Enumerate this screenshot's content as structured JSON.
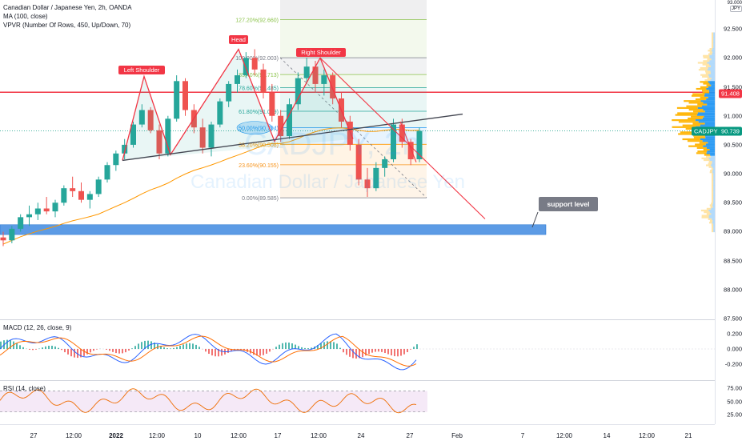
{
  "legend": {
    "symbol_line": "Canadian Dollar / Japanese Yen, 2h, OANDA",
    "ma_line": "MA (100, close)",
    "vpvr_line": "VPVR (Number Of Rows, 450, Up/Down, 70)",
    "macd_line": "MACD (12, 26, close, 9)",
    "rsi_line": "RSI (14, close)"
  },
  "watermark": {
    "symbol": "CADJPY, 2h",
    "name": "Canadian Dollar / Japanese Yen"
  },
  "colors": {
    "up": "#26a69a",
    "down": "#ef5350",
    "ma": "#ff9800",
    "pattern": "#f23645",
    "neckline": "#434651",
    "support": "#2196f3",
    "resistance": "#f23645",
    "price": "#089981",
    "vp_up": "#2196f3",
    "vp_down": "#ffb300"
  },
  "price_axis": {
    "currency": "JPY",
    "top_label": "93.000",
    "ticks": [
      "92.500",
      "92.000",
      "91.500",
      "91.000",
      "90.500",
      "90.000",
      "89.500",
      "89.000",
      "88.500",
      "88.000",
      "87.500"
    ]
  },
  "macd_axis": {
    "ticks": [
      "0.200",
      "0.000",
      "-0.200"
    ]
  },
  "rsi_axis": {
    "ticks": [
      "75.00",
      "50.00",
      "25.00"
    ]
  },
  "time_axis": [
    {
      "label": "27",
      "bold": false
    },
    {
      "label": "12:00",
      "bold": false
    },
    {
      "label": "2022",
      "bold": true
    },
    {
      "label": "12:00",
      "bold": false
    },
    {
      "label": "10",
      "bold": false
    },
    {
      "label": "12:00",
      "bold": false
    },
    {
      "label": "17",
      "bold": false
    },
    {
      "label": "12:00",
      "bold": false
    },
    {
      "label": "24",
      "bold": false
    },
    {
      "label": "27",
      "bold": false
    },
    {
      "label": "Feb",
      "bold": false
    },
    {
      "label": "7",
      "bold": false
    },
    {
      "label": "12:00",
      "bold": false
    },
    {
      "label": "14",
      "bold": false
    },
    {
      "label": "12:00",
      "bold": false
    },
    {
      "label": "21",
      "bold": false
    }
  ],
  "price_tags": {
    "resistance_value": "91.408",
    "ticker": "CADJPY",
    "last_value": "90.739"
  },
  "fib_levels": [
    {
      "label": "127.20%(92.660)",
      "price": 92.66,
      "color": "#8bc34a"
    },
    {
      "label": "100.00%(92.003)",
      "price": 92.003,
      "color": "#787b86"
    },
    {
      "label": "85.40%(91.713)",
      "price": 91.713,
      "color": "#8bc34a"
    },
    {
      "label": "78.60%(91.485)",
      "price": 91.485,
      "color": "#26a69a"
    },
    {
      "label": "61.80%(91.079)",
      "price": 91.079,
      "color": "#26a69a"
    },
    {
      "label": "50.00%(90.794)",
      "price": 90.794,
      "color": "#2196f3"
    },
    {
      "label": "38.20%(90.508)",
      "price": 90.508,
      "color": "#ff9800"
    },
    {
      "label": "23.60%(90.155)",
      "price": 90.155,
      "color": "#f7931a"
    },
    {
      "label": "0.00%(89.585)",
      "price": 89.585,
      "color": "#787b86"
    }
  ],
  "annotations": {
    "left_shoulder": "Left Shoulder",
    "head": "Head",
    "right_shoulder": "Right Shoulder",
    "support": "support level"
  },
  "chart_data": {
    "type": "candlestick",
    "symbol": "CADJPY",
    "timeframe": "2h",
    "price_range": [
      87.5,
      93.0
    ],
    "ohlc_approx": [
      {
        "o": 88.9,
        "h": 89.0,
        "l": 88.75,
        "c": 88.85
      },
      {
        "o": 88.85,
        "h": 89.1,
        "l": 88.8,
        "c": 89.05
      },
      {
        "o": 89.05,
        "h": 89.3,
        "l": 89.0,
        "c": 89.25
      },
      {
        "o": 89.25,
        "h": 89.45,
        "l": 89.1,
        "c": 89.3
      },
      {
        "o": 89.3,
        "h": 89.5,
        "l": 89.2,
        "c": 89.4
      },
      {
        "o": 89.4,
        "h": 89.6,
        "l": 89.3,
        "c": 89.35
      },
      {
        "o": 89.35,
        "h": 89.55,
        "l": 89.25,
        "c": 89.5
      },
      {
        "o": 89.5,
        "h": 89.8,
        "l": 89.45,
        "c": 89.75
      },
      {
        "o": 89.75,
        "h": 89.95,
        "l": 89.6,
        "c": 89.7
      },
      {
        "o": 89.7,
        "h": 89.85,
        "l": 89.5,
        "c": 89.55
      },
      {
        "o": 89.55,
        "h": 89.7,
        "l": 89.4,
        "c": 89.65
      },
      {
        "o": 89.65,
        "h": 89.95,
        "l": 89.6,
        "c": 89.9
      },
      {
        "o": 89.9,
        "h": 90.2,
        "l": 89.85,
        "c": 90.15
      },
      {
        "o": 90.15,
        "h": 90.4,
        "l": 90.05,
        "c": 90.35
      },
      {
        "o": 90.35,
        "h": 90.6,
        "l": 90.25,
        "c": 90.5
      },
      {
        "o": 90.5,
        "h": 90.9,
        "l": 90.45,
        "c": 90.85
      },
      {
        "o": 90.85,
        "h": 91.2,
        "l": 90.8,
        "c": 91.1
      },
      {
        "o": 91.1,
        "h": 91.15,
        "l": 90.7,
        "c": 90.75
      },
      {
        "o": 90.75,
        "h": 90.85,
        "l": 90.25,
        "c": 90.35
      },
      {
        "o": 90.35,
        "h": 91.0,
        "l": 90.3,
        "c": 90.95
      },
      {
        "o": 90.95,
        "h": 91.7,
        "l": 90.9,
        "c": 91.6
      },
      {
        "o": 91.6,
        "h": 91.65,
        "l": 91.0,
        "c": 91.1
      },
      {
        "o": 91.1,
        "h": 91.2,
        "l": 90.7,
        "c": 90.8
      },
      {
        "o": 90.8,
        "h": 90.95,
        "l": 90.35,
        "c": 90.45
      },
      {
        "o": 90.45,
        "h": 90.9,
        "l": 90.3,
        "c": 90.85
      },
      {
        "o": 90.85,
        "h": 91.3,
        "l": 90.8,
        "c": 91.25
      },
      {
        "o": 91.25,
        "h": 91.6,
        "l": 91.15,
        "c": 91.55
      },
      {
        "o": 91.55,
        "h": 91.8,
        "l": 91.4,
        "c": 91.7
      },
      {
        "o": 91.7,
        "h": 92.1,
        "l": 91.65,
        "c": 92.0
      },
      {
        "o": 92.0,
        "h": 92.15,
        "l": 91.7,
        "c": 91.8
      },
      {
        "o": 91.8,
        "h": 91.9,
        "l": 91.3,
        "c": 91.4
      },
      {
        "o": 91.4,
        "h": 91.55,
        "l": 90.9,
        "c": 91.0
      },
      {
        "o": 91.0,
        "h": 91.1,
        "l": 90.55,
        "c": 90.65
      },
      {
        "o": 90.65,
        "h": 91.3,
        "l": 90.6,
        "c": 91.2
      },
      {
        "o": 91.2,
        "h": 91.75,
        "l": 91.1,
        "c": 91.65
      },
      {
        "o": 91.65,
        "h": 92.0,
        "l": 91.55,
        "c": 91.85
      },
      {
        "o": 91.85,
        "h": 91.95,
        "l": 91.4,
        "c": 91.55
      },
      {
        "o": 91.55,
        "h": 91.8,
        "l": 91.35,
        "c": 91.7
      },
      {
        "o": 91.7,
        "h": 91.75,
        "l": 91.2,
        "c": 91.3
      },
      {
        "o": 91.3,
        "h": 91.4,
        "l": 90.8,
        "c": 90.9
      },
      {
        "o": 90.9,
        "h": 91.0,
        "l": 90.4,
        "c": 90.5
      },
      {
        "o": 90.5,
        "h": 90.6,
        "l": 89.8,
        "c": 89.9
      },
      {
        "o": 89.9,
        "h": 90.1,
        "l": 89.6,
        "c": 89.75
      },
      {
        "o": 89.75,
        "h": 90.2,
        "l": 89.7,
        "c": 90.1
      },
      {
        "o": 90.1,
        "h": 90.3,
        "l": 89.95,
        "c": 90.25
      },
      {
        "o": 90.25,
        "h": 90.95,
        "l": 90.2,
        "c": 90.85
      },
      {
        "o": 90.85,
        "h": 90.95,
        "l": 90.45,
        "c": 90.55
      },
      {
        "o": 90.55,
        "h": 90.6,
        "l": 90.15,
        "c": 90.25
      },
      {
        "o": 90.25,
        "h": 90.8,
        "l": 90.2,
        "c": 90.74
      }
    ],
    "support_zone": [
      88.95,
      89.12
    ],
    "resistance_line": 91.408,
    "last_price": 90.739,
    "macd_range": [
      -0.35,
      0.3
    ],
    "rsi_range": [
      22,
      80
    ],
    "rsi_band": [
      30,
      70
    ]
  }
}
